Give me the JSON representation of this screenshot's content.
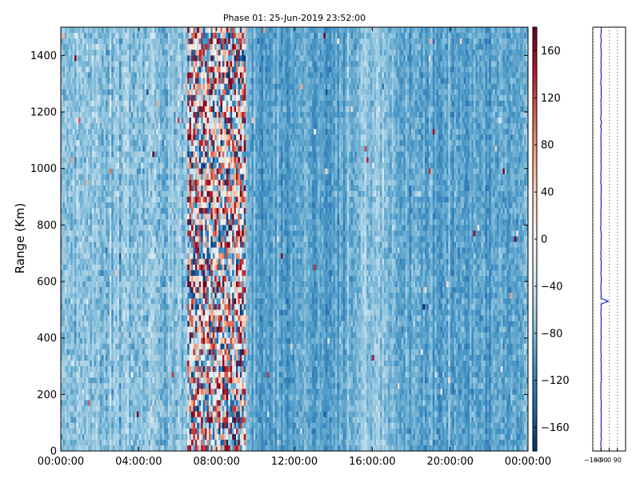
{
  "chart_data": [
    {
      "type": "heatmap",
      "title": "Phase 01: 25-Jun-2019 23:52:00",
      "ylabel": "Range (Km)",
      "xlabel": "",
      "xlim": [
        "00:00:00",
        "24:00:00"
      ],
      "ylim": [
        0,
        1500
      ],
      "x_ticks": [
        "00:00:00",
        "04:00:00",
        "08:00:00",
        "12:00:00",
        "16:00:00",
        "20:00:00",
        "00:00:00"
      ],
      "y_ticks": [
        "0",
        "200",
        "400",
        "600",
        "800",
        "1000",
        "1200",
        "1400"
      ],
      "colorbar": {
        "vmin": -180,
        "vmax": 180,
        "ticks": [
          "160",
          "120",
          "80",
          "40",
          "0",
          "−40",
          "−80",
          "−120",
          "−160"
        ],
        "colormap": [
          "#053061",
          "#2166ac",
          "#4393c3",
          "#92c5de",
          "#d1e5f0",
          "#f7f7f7",
          "#fddbc7",
          "#f4a582",
          "#d6604d",
          "#b2182b",
          "#67001f"
        ]
      },
      "time_segments": [
        {
          "start": "00:00",
          "end": "06:30",
          "phase_mean": -75,
          "spread": 25
        },
        {
          "start": "06:30",
          "end": "09:30",
          "phase_mean": 0,
          "spread": 90
        },
        {
          "start": "09:30",
          "end": "14:40",
          "phase_mean": -100,
          "spread": 18
        },
        {
          "start": "14:40",
          "end": "17:15",
          "phase_mean": -75,
          "spread": 20
        },
        {
          "start": "17:15",
          "end": "23:50",
          "phase_mean": -95,
          "spread": 20
        }
      ]
    },
    {
      "type": "line",
      "x_ticks": [
        "−180",
        "−90",
        "0",
        "90"
      ],
      "xlim": [
        -180,
        180
      ],
      "ylim": [
        0,
        1500
      ],
      "line_color": "#0000cc",
      "mean_phase": -90,
      "spike_range_km": 530,
      "spike_phase": -10
    }
  ]
}
